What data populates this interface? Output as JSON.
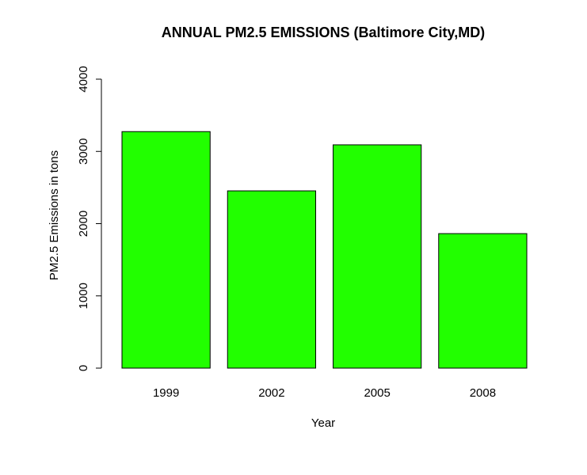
{
  "chart_data": {
    "type": "bar",
    "title": "ANNUAL PM2.5 EMISSIONS (Baltimore City,MD)",
    "xlabel": "Year",
    "ylabel": "PM2.5 Emissions in tons",
    "categories": [
      "1999",
      "2002",
      "2005",
      "2008"
    ],
    "values": [
      3274,
      2454,
      3091,
      1862
    ],
    "ylim": [
      0,
      4000
    ],
    "yticks": [
      "0",
      "1000",
      "2000",
      "3000",
      "4000"
    ],
    "bar_color": "#22ff00",
    "grid": false,
    "legend": "none"
  }
}
